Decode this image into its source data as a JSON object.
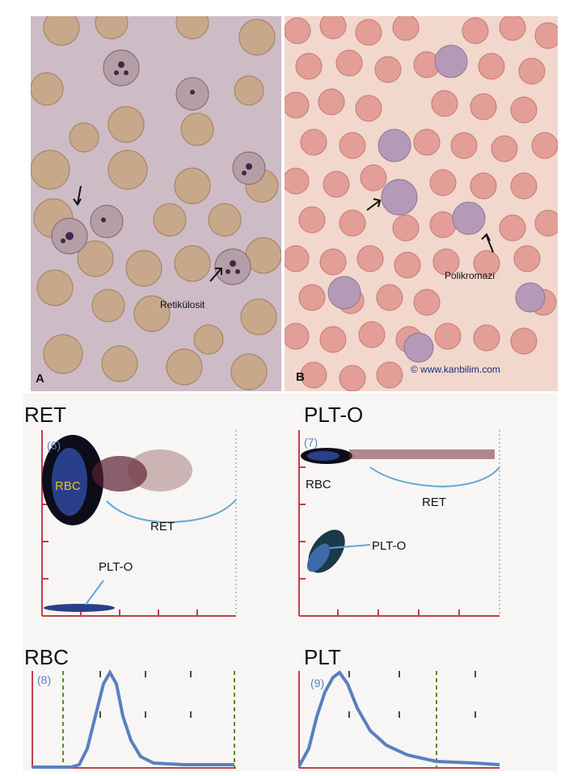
{
  "panel_a": {
    "letter": "A",
    "label": "Retikülosit"
  },
  "panel_b": {
    "letter": "B",
    "label": "Polikromazi",
    "watermark": "© www.kanbilim.com"
  },
  "plots": {
    "ret": {
      "title": "RET",
      "number": "(6)",
      "labels": {
        "rbc": "RBC",
        "ret": "RET",
        "plto": "PLT-O"
      }
    },
    "plto": {
      "title": "PLT-O",
      "number": "(7)",
      "labels": {
        "rbc": "RBC",
        "ret": "RET",
        "plto": "PLT-O"
      }
    },
    "rbc": {
      "title": "RBC",
      "number": "(8)"
    },
    "plt": {
      "title": "PLT",
      "number": "(9)"
    }
  },
  "colors": {
    "axis": "#c0404a",
    "curve": "#5b7fbf",
    "rbc_label": "#e6c21a",
    "dash": "#5a8a2a",
    "cell_a": "#c9a98a",
    "cell_b": "#e19b94"
  }
}
